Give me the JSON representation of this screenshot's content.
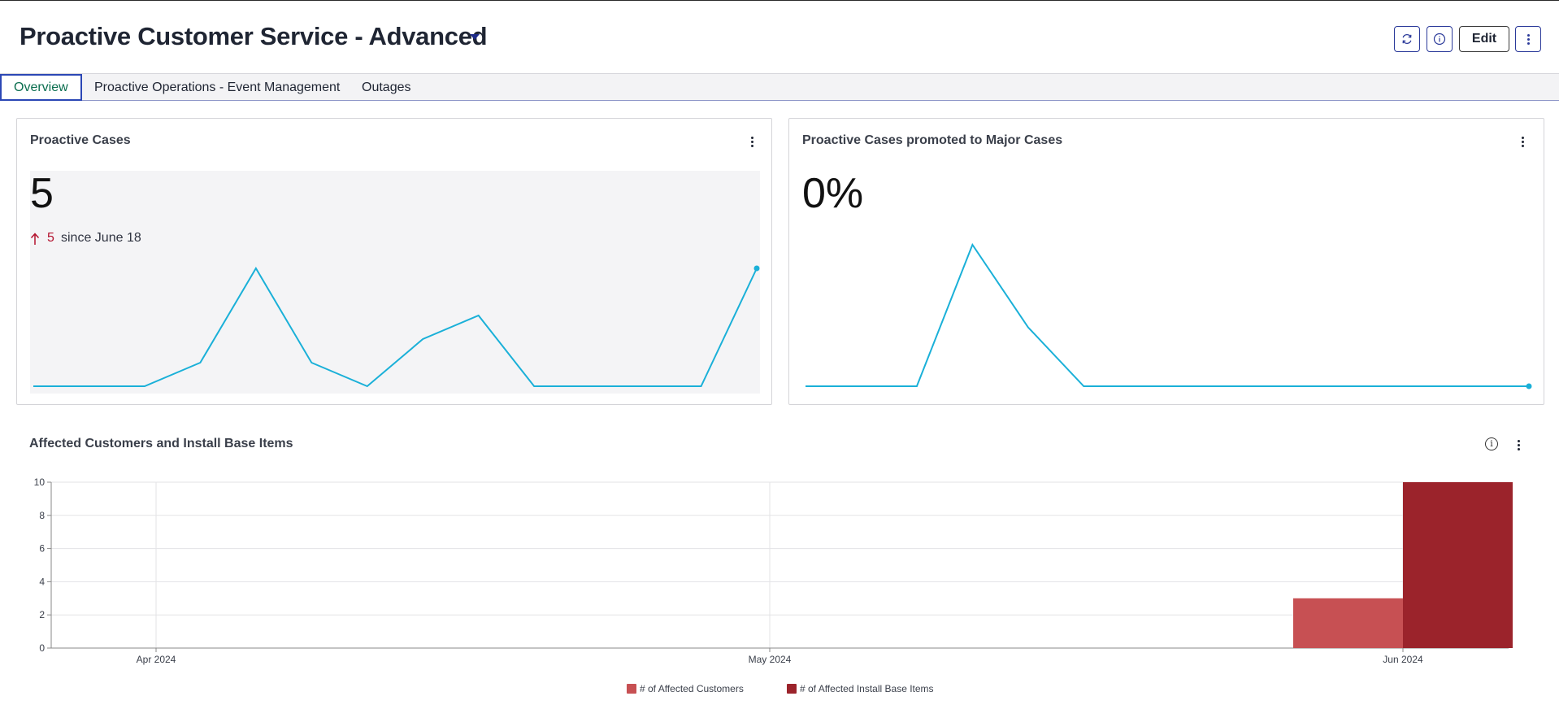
{
  "header": {
    "title": "Proactive Customer Service - Advanced",
    "edit_label": "Edit"
  },
  "icons": [
    "refresh-icon",
    "info-icon",
    "kebab-icon",
    "chevron-down-icon",
    "arrow-up-icon"
  ],
  "tabs": [
    {
      "label": "Overview",
      "active": true
    },
    {
      "label": "Proactive Operations - Event Management",
      "active": false
    },
    {
      "label": "Outages",
      "active": false
    }
  ],
  "cards": {
    "proactive_cases": {
      "title": "Proactive Cases",
      "value": "5",
      "delta_value": "5",
      "delta_text": "since June 18",
      "trend": [
        0,
        0,
        0,
        1,
        5,
        1,
        0,
        2,
        3,
        0,
        0,
        0,
        0,
        5
      ]
    },
    "promoted_cases": {
      "title": "Proactive Cases promoted to Major Cases",
      "value": "0%",
      "trend": [
        0,
        0,
        0,
        6,
        2.5,
        0,
        0,
        0,
        0,
        0,
        0,
        0,
        0,
        0
      ]
    }
  },
  "bar_section": {
    "title": "Affected Customers and Install Base Items",
    "legend": [
      {
        "label": "# of Affected Customers",
        "color": "#c75053"
      },
      {
        "label": "# of Affected Install Base Items",
        "color": "#9b232b"
      }
    ]
  },
  "colors": {
    "line": "#1ab0d8",
    "accent": "#2b3a9a",
    "delta_up": "#b3122e"
  },
  "chart_data": {
    "type": "bar",
    "title": "Affected Customers and Install Base Items",
    "x_ticks": [
      "Apr 2024",
      "May 2024",
      "Jun 2024"
    ],
    "ylim": [
      0,
      10
    ],
    "y_ticks": [
      0,
      2,
      4,
      6,
      8,
      10
    ],
    "grid": true,
    "legend_position": "bottom",
    "categories": [
      "Jun 2024"
    ],
    "series": [
      {
        "name": "# of Affected Customers",
        "values": [
          3
        ]
      },
      {
        "name": "# of Affected Install Base Items",
        "values": [
          10
        ]
      }
    ]
  }
}
